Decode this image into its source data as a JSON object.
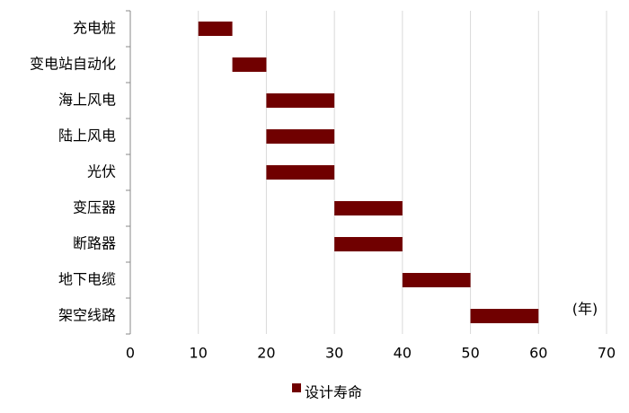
{
  "chart_data": {
    "type": "floating-bar",
    "orientation": "horizontal",
    "categories": [
      "充电桩",
      "变电站自动化",
      "海上风电",
      "陆上风电",
      "光伏",
      "变压器",
      "断路器",
      "地下电缆",
      "架空线路"
    ],
    "series": [
      {
        "name": "设计寿命",
        "color": "#700000",
        "values": [
          [
            10,
            15
          ],
          [
            15,
            20
          ],
          [
            20,
            30
          ],
          [
            20,
            30
          ],
          [
            20,
            30
          ],
          [
            30,
            40
          ],
          [
            30,
            40
          ],
          [
            40,
            50
          ],
          [
            50,
            60
          ]
        ]
      }
    ],
    "xlim": [
      0,
      70
    ],
    "xticks": [
      0,
      10,
      20,
      30,
      40,
      50,
      60,
      70
    ],
    "grid": true,
    "annotation": "(年)",
    "legend": "bottom"
  }
}
